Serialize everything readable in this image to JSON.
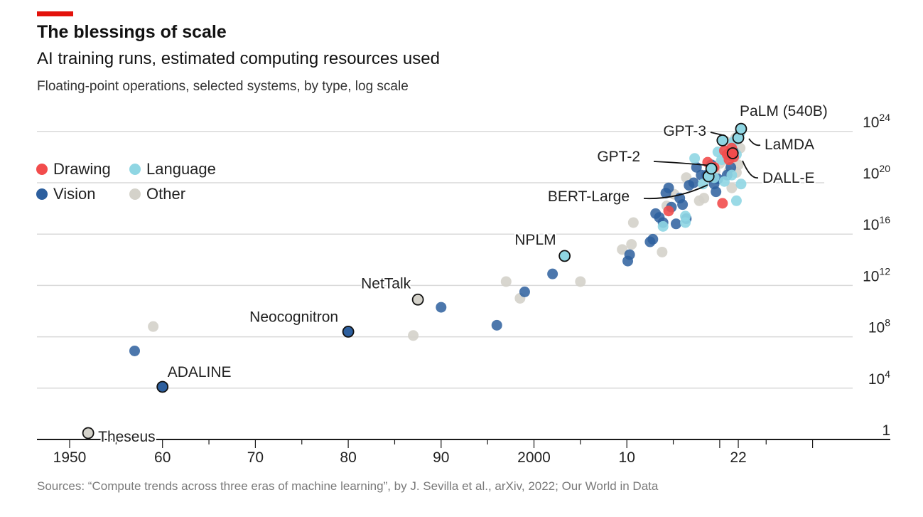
{
  "header": {
    "title": "The blessings of scale",
    "subtitle": "AI training runs, estimated computing resources used",
    "description": "Floating-point operations, selected systems, by type, log scale"
  },
  "footer": {
    "source": "Sources: “Compute trends across three eras of machine learning”, by J. Sevilla et al., arXiv, 2022; Our World in Data"
  },
  "colors": {
    "accent": "#e3120b",
    "Drawing": "#f24c4c",
    "Language": "#8fd6e3",
    "Vision": "#2d5f9e",
    "Other": "#d4d2ca",
    "grid": "#d9d9d9",
    "axis": "#1a1a1a"
  },
  "chart_data": {
    "type": "scatter",
    "yscale": "log10",
    "ylim": [
      0,
      25
    ],
    "xlim": [
      1945,
      2033
    ],
    "grid": true,
    "legend_position": "top-left",
    "y_ticks": [
      {
        "exp": 0,
        "label": "1"
      },
      {
        "exp": 4,
        "label": "10",
        "sup": "4"
      },
      {
        "exp": 8,
        "label": "10",
        "sup": "8"
      },
      {
        "exp": 12,
        "label": "10",
        "sup": "12"
      },
      {
        "exp": 16,
        "label": "10",
        "sup": "16"
      },
      {
        "exp": 20,
        "label": "10",
        "sup": "20"
      },
      {
        "exp": 24,
        "label": "10",
        "sup": "24"
      }
    ],
    "x_ticks": [
      {
        "value": 1950,
        "label": "1950"
      },
      {
        "value": 1960,
        "label": "60"
      },
      {
        "value": 1970,
        "label": "70"
      },
      {
        "value": 1980,
        "label": "80"
      },
      {
        "value": 1990,
        "label": "90"
      },
      {
        "value": 2000,
        "label": "2000"
      },
      {
        "value": 2010,
        "label": "10"
      },
      {
        "value": 2022,
        "label": "22"
      }
    ],
    "legend": [
      {
        "name": "Drawing",
        "key": "Drawing"
      },
      {
        "name": "Language",
        "key": "Language"
      },
      {
        "name": "Vision",
        "key": "Vision"
      },
      {
        "name": "Other",
        "key": "Other"
      }
    ],
    "series": [
      {
        "name": "Drawing",
        "points": [
          [
            2014.5,
            17.8
          ],
          [
            2018.7,
            21.6
          ],
          [
            2019.4,
            21.2
          ],
          [
            2020.5,
            22.5
          ],
          [
            2020.8,
            22.2
          ],
          [
            2021,
            21.8
          ],
          [
            2021.3,
            22.7
          ],
          [
            2021.5,
            22
          ],
          [
            2020.3,
            18.4
          ]
        ]
      },
      {
        "name": "Language",
        "points": [
          [
            2017.3,
            21.9
          ],
          [
            2018.2,
            19.9
          ],
          [
            2019.4,
            20.4
          ],
          [
            2019.8,
            22.4
          ],
          [
            2020.2,
            21.8
          ],
          [
            2020.5,
            20.1
          ],
          [
            2021.5,
            23.2
          ],
          [
            2021.8,
            22.2
          ],
          [
            2022.2,
            23.9
          ],
          [
            2022.3,
            19.9
          ],
          [
            2021.8,
            18.6
          ],
          [
            2016.3,
            17.4
          ],
          [
            2016.3,
            16.9
          ],
          [
            2013.9,
            16.6
          ],
          [
            2021.3,
            20.6
          ]
        ]
      },
      {
        "name": "Vision",
        "points": [
          [
            1957,
            6.9
          ],
          [
            1990,
            10.3
          ],
          [
            1996,
            8.9
          ],
          [
            1999,
            11.5
          ],
          [
            2002,
            12.9
          ],
          [
            2010.1,
            13.9
          ],
          [
            2010.3,
            14.4
          ],
          [
            2012.5,
            15.4
          ],
          [
            2012.8,
            15.6
          ],
          [
            2013.9,
            16.9
          ],
          [
            2014.2,
            19.2
          ],
          [
            2013.5,
            17.3
          ],
          [
            2014.5,
            19.6
          ],
          [
            2014.8,
            18.1
          ],
          [
            2015.3,
            16.8
          ],
          [
            2015.7,
            18.8
          ],
          [
            2016,
            18.3
          ],
          [
            2016.4,
            17.2
          ],
          [
            2016.7,
            19.8
          ],
          [
            2017.2,
            20
          ],
          [
            2017.5,
            21.2
          ],
          [
            2018,
            20.6
          ],
          [
            2018.6,
            20.6
          ],
          [
            2019.4,
            19.9
          ],
          [
            2019.6,
            19.3
          ],
          [
            2019.8,
            20.3
          ],
          [
            2020.8,
            20.6
          ],
          [
            2021.2,
            21.2
          ],
          [
            2021.5,
            22.4
          ],
          [
            2019.1,
            21.4
          ],
          [
            2013.1,
            17.6
          ]
        ]
      },
      {
        "name": "Other",
        "points": [
          [
            1959,
            8.8
          ],
          [
            1987,
            8.1
          ],
          [
            1997,
            12.3
          ],
          [
            1998.5,
            11
          ],
          [
            2005,
            12.3
          ],
          [
            2009.5,
            14.8
          ],
          [
            2010.5,
            15.2
          ],
          [
            2010.7,
            16.9
          ],
          [
            2013.8,
            14.6
          ],
          [
            2014.3,
            18.2
          ],
          [
            2015.1,
            19.1
          ],
          [
            2016.4,
            20.4
          ],
          [
            2017.8,
            18.6
          ],
          [
            2018.3,
            18.8
          ],
          [
            2019.5,
            20.9
          ],
          [
            2020,
            21.5
          ],
          [
            2020.5,
            21.8
          ],
          [
            2021,
            20.9
          ],
          [
            2021.3,
            19.6
          ],
          [
            2021.8,
            20.8
          ],
          [
            2022,
            21.4
          ],
          [
            2022.2,
            22.7
          ],
          [
            2020.7,
            23.2
          ],
          [
            2021.7,
            23.5
          ]
        ]
      }
    ],
    "highlighted": [
      {
        "name": "Theseus",
        "type": "Other",
        "x": 1952,
        "y": 0.5
      },
      {
        "name": "ADALINE",
        "type": "Vision",
        "x": 1960,
        "y": 4.1
      },
      {
        "name": "Neocognitron",
        "type": "Vision",
        "x": 1980,
        "y": 8.4
      },
      {
        "name": "NetTalk",
        "type": "Other",
        "x": 1987.5,
        "y": 10.9
      },
      {
        "name": "NPLM",
        "type": "Language",
        "x": 2003.3,
        "y": 14.3
      },
      {
        "name": "BERT-Large",
        "type": "Language",
        "x": 2018.8,
        "y": 20.5
      },
      {
        "name": "GPT-2",
        "type": "Language",
        "x": 2019.1,
        "y": 21.1
      },
      {
        "name": "GPT-3",
        "type": "Language",
        "x": 2020.3,
        "y": 23.3
      },
      {
        "name": "DALL-E",
        "type": "Drawing",
        "x": 2021.4,
        "y": 22.3
      },
      {
        "name": "LaMDA",
        "type": "Language",
        "x": 2022,
        "y": 23.5
      },
      {
        "name": "PaLM (540B)",
        "type": "Language",
        "x": 2022.3,
        "y": 24.2
      }
    ]
  }
}
